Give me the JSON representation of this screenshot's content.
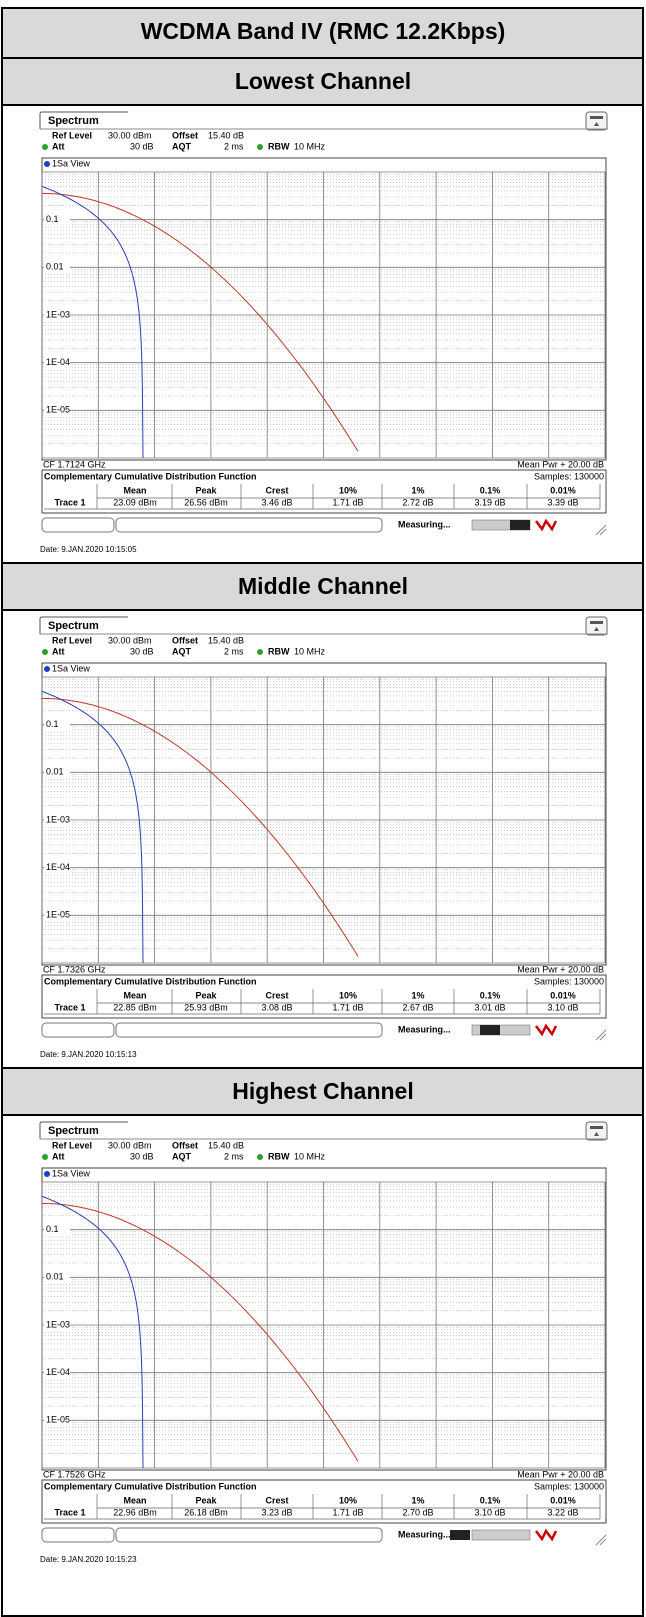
{
  "header": {
    "title": "WCDMA Band IV (RMC 12.2Kbps)"
  },
  "sections": [
    {
      "title": "Lowest Channel",
      "tab": "Spectrum",
      "ref_level_label": "Ref Level",
      "ref_level": "30.00 dBm",
      "offset_label": "Offset",
      "offset": "15.40 dB",
      "att_label": "Att",
      "att": "30 dB",
      "aqt_label": "AQT",
      "aqt": "2 ms",
      "rbw_label": "RBW",
      "rbw": "10 MHz",
      "view": "1Sa View",
      "y_labels": [
        "0.1",
        "0.01",
        "1E-03",
        "1E-04",
        "1E-05"
      ],
      "cf": "CF 1.7124 GHz",
      "mean_pwr": "Mean Pwr + 20.00 dB",
      "ccdf_title": "Complementary Cumulative Distribution Function",
      "samples": "Samples: 130000",
      "columns": [
        "Mean",
        "Peak",
        "Crest",
        "10%",
        "1%",
        "0.1%",
        "0.01%"
      ],
      "trace": "Trace 1",
      "values": [
        "23.09 dBm",
        "26.56 dBm",
        "3.46 dB",
        "1.71 dB",
        "2.72 dB",
        "3.19 dB",
        "3.39 dB"
      ],
      "status": "Measuring...",
      "date": "Date: 9.JAN.2020  10:15:05"
    },
    {
      "title": "Middle Channel",
      "tab": "Spectrum",
      "ref_level_label": "Ref Level",
      "ref_level": "30.00 dBm",
      "offset_label": "Offset",
      "offset": "15.40 dB",
      "att_label": "Att",
      "att": "30 dB",
      "aqt_label": "AQT",
      "aqt": "2 ms",
      "rbw_label": "RBW",
      "rbw": "10 MHz",
      "view": "1Sa View",
      "y_labels": [
        "0.1",
        "0.01",
        "1E-03",
        "1E-04",
        "1E-05"
      ],
      "cf": "CF 1.7326 GHz",
      "mean_pwr": "Mean Pwr + 20.00 dB",
      "ccdf_title": "Complementary Cumulative Distribution Function",
      "samples": "Samples: 130000",
      "columns": [
        "Mean",
        "Peak",
        "Crest",
        "10%",
        "1%",
        "0.1%",
        "0.01%"
      ],
      "trace": "Trace 1",
      "values": [
        "22.85 dBm",
        "25.93 dBm",
        "3.08 dB",
        "1.71 dB",
        "2.67 dB",
        "3.01 dB",
        "3.10 dB"
      ],
      "status": "Measuring...",
      "date": "Date: 9.JAN.2020  10:15:13"
    },
    {
      "title": "Highest Channel",
      "tab": "Spectrum",
      "ref_level_label": "Ref Level",
      "ref_level": "30.00 dBm",
      "offset_label": "Offset",
      "offset": "15.40 dB",
      "att_label": "Att",
      "att": "30 dB",
      "aqt_label": "AQT",
      "aqt": "2 ms",
      "rbw_label": "RBW",
      "rbw": "10 MHz",
      "view": "1Sa View",
      "y_labels": [
        "0.1",
        "0.01",
        "1E-03",
        "1E-04",
        "1E-05"
      ],
      "cf": "CF 1.7526 GHz",
      "mean_pwr": "Mean Pwr + 20.00 dB",
      "ccdf_title": "Complementary Cumulative Distribution Function",
      "samples": "Samples: 130000",
      "columns": [
        "Mean",
        "Peak",
        "Crest",
        "10%",
        "1%",
        "0.1%",
        "0.01%"
      ],
      "trace": "Trace 1",
      "values": [
        "22.96 dBm",
        "26.18 dBm",
        "3.23 dB",
        "1.71 dB",
        "2.70 dB",
        "3.10 dB",
        "3.22 dB"
      ],
      "status": "Measuring...",
      "date": "Date: 9.JAN.2020  10:15:23"
    }
  ]
}
